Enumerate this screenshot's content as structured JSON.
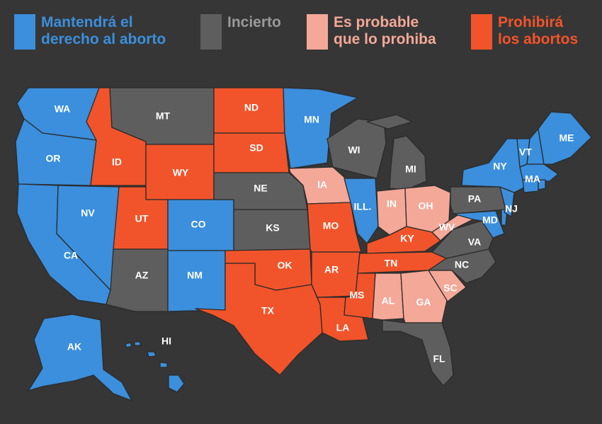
{
  "colors": {
    "background": "#363636",
    "keep": "#3b8fdc",
    "uncertain": "#5e5e5e",
    "likely": "#f4a898",
    "ban": "#f1542a"
  },
  "legend": [
    {
      "key": "keep",
      "label": "Mantendrá el\nderecho al aborto",
      "text_color": "#3b8fdc"
    },
    {
      "key": "uncertain",
      "label": "Incierto",
      "text_color": "#9a9a9a"
    },
    {
      "key": "likely",
      "label": "Es probable\nque lo prohiba",
      "text_color": "#f4a898"
    },
    {
      "key": "ban",
      "label": "Prohibirá\nlos abortos",
      "text_color": "#f1542a"
    }
  ],
  "states": [
    {
      "id": "WA",
      "label": "WA",
      "status": "keep"
    },
    {
      "id": "OR",
      "label": "OR",
      "status": "keep"
    },
    {
      "id": "CA",
      "label": "CA",
      "status": "keep"
    },
    {
      "id": "NV",
      "label": "NV",
      "status": "keep"
    },
    {
      "id": "ID",
      "label": "ID",
      "status": "ban"
    },
    {
      "id": "MT",
      "label": "MT",
      "status": "uncertain"
    },
    {
      "id": "WY",
      "label": "WY",
      "status": "ban"
    },
    {
      "id": "UT",
      "label": "UT",
      "status": "ban"
    },
    {
      "id": "CO",
      "label": "CO",
      "status": "keep"
    },
    {
      "id": "AZ",
      "label": "AZ",
      "status": "uncertain"
    },
    {
      "id": "NM",
      "label": "NM",
      "status": "keep"
    },
    {
      "id": "ND",
      "label": "ND",
      "status": "ban"
    },
    {
      "id": "SD",
      "label": "SD",
      "status": "ban"
    },
    {
      "id": "NE",
      "label": "NE",
      "status": "uncertain"
    },
    {
      "id": "KS",
      "label": "KS",
      "status": "uncertain"
    },
    {
      "id": "OK",
      "label": "OK",
      "status": "ban"
    },
    {
      "id": "TX",
      "label": "TX",
      "status": "ban"
    },
    {
      "id": "MN",
      "label": "MN",
      "status": "keep"
    },
    {
      "id": "IA",
      "label": "IA",
      "status": "likely"
    },
    {
      "id": "MO",
      "label": "MO",
      "status": "ban"
    },
    {
      "id": "AR",
      "label": "AR",
      "status": "ban"
    },
    {
      "id": "LA",
      "label": "LA",
      "status": "ban"
    },
    {
      "id": "WI",
      "label": "WI",
      "status": "uncertain"
    },
    {
      "id": "IL",
      "label": "ILL.",
      "status": "keep"
    },
    {
      "id": "MI",
      "label": "MI",
      "status": "uncertain"
    },
    {
      "id": "IN",
      "label": "IN",
      "status": "likely"
    },
    {
      "id": "OH",
      "label": "OH",
      "status": "likely"
    },
    {
      "id": "KY",
      "label": "KY",
      "status": "ban"
    },
    {
      "id": "TN",
      "label": "TN",
      "status": "ban"
    },
    {
      "id": "MS",
      "label": "MS",
      "status": "ban"
    },
    {
      "id": "AL",
      "label": "AL",
      "status": "likely"
    },
    {
      "id": "GA",
      "label": "GA",
      "status": "likely"
    },
    {
      "id": "FL",
      "label": "FL",
      "status": "uncertain"
    },
    {
      "id": "SC",
      "label": "SC",
      "status": "likely"
    },
    {
      "id": "NC",
      "label": "NC",
      "status": "uncertain"
    },
    {
      "id": "VA",
      "label": "VA",
      "status": "uncertain"
    },
    {
      "id": "WV",
      "label": "WV",
      "status": "likely"
    },
    {
      "id": "PA",
      "label": "PA",
      "status": "uncertain"
    },
    {
      "id": "NY",
      "label": "NY",
      "status": "keep"
    },
    {
      "id": "NJ",
      "label": "NJ",
      "status": "keep"
    },
    {
      "id": "MD",
      "label": "MD",
      "status": "keep"
    },
    {
      "id": "DE",
      "label": "",
      "status": "keep"
    },
    {
      "id": "VT",
      "label": "VT",
      "status": "keep"
    },
    {
      "id": "NH",
      "label": "",
      "status": "keep"
    },
    {
      "id": "ME",
      "label": "ME",
      "status": "keep"
    },
    {
      "id": "MA",
      "label": "MA",
      "status": "keep"
    },
    {
      "id": "CT",
      "label": "",
      "status": "keep"
    },
    {
      "id": "RI",
      "label": "",
      "status": "keep"
    },
    {
      "id": "AK",
      "label": "AK",
      "status": "keep"
    },
    {
      "id": "HI",
      "label": "HI",
      "status": "keep"
    }
  ]
}
